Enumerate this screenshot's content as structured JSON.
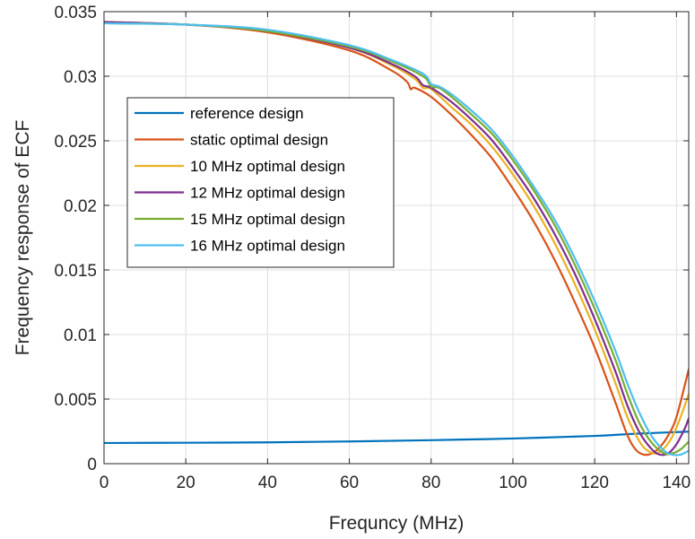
{
  "chart_data": {
    "type": "line",
    "title": "",
    "xlabel": "Frequncy (MHz)",
    "ylabel": "Frequency response of ECF",
    "xlim": [
      0,
      143
    ],
    "ylim": [
      0,
      0.035
    ],
    "x_ticks": [
      0,
      20,
      40,
      60,
      80,
      100,
      120,
      140
    ],
    "x_tick_labels": [
      "0",
      "20",
      "40",
      "60",
      "80",
      "100",
      "120",
      "140"
    ],
    "y_ticks": [
      0,
      0.005,
      0.01,
      0.015,
      0.02,
      0.025,
      0.03,
      0.035
    ],
    "y_tick_labels": [
      "0",
      "0.005",
      "0.01",
      "0.015",
      "0.02",
      "0.025",
      "0.03",
      "0.035"
    ],
    "grid": true,
    "legend_position": "upper-left",
    "series": [
      {
        "name": "reference design",
        "color": "#0072BD",
        "points": [
          [
            0,
            0.0016
          ],
          [
            20,
            0.00162
          ],
          [
            40,
            0.00165
          ],
          [
            60,
            0.00172
          ],
          [
            80,
            0.00182
          ],
          [
            100,
            0.00195
          ],
          [
            120,
            0.00215
          ],
          [
            130,
            0.00232
          ],
          [
            143,
            0.00248
          ]
        ]
      },
      {
        "name": "static optimal design",
        "color": "#D95319",
        "points": [
          [
            0,
            0.0342
          ],
          [
            20,
            0.034
          ],
          [
            40,
            0.0334
          ],
          [
            60,
            0.032
          ],
          [
            70,
            0.0305
          ],
          [
            74,
            0.0296
          ],
          [
            75,
            0.029
          ],
          [
            76,
            0.0291
          ],
          [
            80,
            0.0284
          ],
          [
            85,
            0.027
          ],
          [
            90,
            0.0254
          ],
          [
            95,
            0.0236
          ],
          [
            100,
            0.0213
          ],
          [
            105,
            0.0188
          ],
          [
            110,
            0.0159
          ],
          [
            115,
            0.0126
          ],
          [
            120,
            0.009
          ],
          [
            125,
            0.0048
          ],
          [
            128,
            0.0022
          ],
          [
            130,
            0.0011
          ],
          [
            132,
            0.0007
          ],
          [
            134,
            0.0008
          ],
          [
            136,
            0.0013
          ],
          [
            138,
            0.0022
          ],
          [
            140,
            0.0036
          ],
          [
            143,
            0.0073
          ]
        ]
      },
      {
        "name": "10 MHz optimal design",
        "color": "#EDB120",
        "points": [
          [
            0,
            0.0342
          ],
          [
            20,
            0.034
          ],
          [
            40,
            0.0335
          ],
          [
            60,
            0.0322
          ],
          [
            70,
            0.0309
          ],
          [
            76,
            0.0298
          ],
          [
            78,
            0.0291
          ],
          [
            80,
            0.029
          ],
          [
            85,
            0.0276
          ],
          [
            90,
            0.0262
          ],
          [
            95,
            0.0245
          ],
          [
            100,
            0.0224
          ],
          [
            105,
            0.02
          ],
          [
            110,
            0.0172
          ],
          [
            115,
            0.014
          ],
          [
            120,
            0.0104
          ],
          [
            125,
            0.0063
          ],
          [
            128,
            0.0036
          ],
          [
            131,
            0.0017
          ],
          [
            133,
            0.001
          ],
          [
            135,
            0.0008
          ],
          [
            137,
            0.0012
          ],
          [
            139,
            0.0021
          ],
          [
            141,
            0.0036
          ],
          [
            143,
            0.0054
          ]
        ]
      },
      {
        "name": "12 MHz optimal design",
        "color": "#7E2F8E",
        "points": [
          [
            0,
            0.0342
          ],
          [
            20,
            0.034
          ],
          [
            40,
            0.0335
          ],
          [
            60,
            0.0322
          ],
          [
            70,
            0.031
          ],
          [
            76,
            0.03
          ],
          [
            78,
            0.0293
          ],
          [
            80,
            0.0291
          ],
          [
            85,
            0.028
          ],
          [
            90,
            0.0266
          ],
          [
            95,
            0.025
          ],
          [
            100,
            0.0229
          ],
          [
            105,
            0.0206
          ],
          [
            110,
            0.0179
          ],
          [
            115,
            0.0148
          ],
          [
            120,
            0.0112
          ],
          [
            125,
            0.0072
          ],
          [
            128,
            0.0045
          ],
          [
            131,
            0.0024
          ],
          [
            134,
            0.0011
          ],
          [
            136,
            0.0007
          ],
          [
            138,
            0.0008
          ],
          [
            140,
            0.0015
          ],
          [
            142,
            0.0027
          ],
          [
            143,
            0.0035
          ]
        ]
      },
      {
        "name": "15 MHz optimal design",
        "color": "#77AC30",
        "points": [
          [
            0,
            0.0341
          ],
          [
            20,
            0.034
          ],
          [
            40,
            0.0335
          ],
          [
            60,
            0.0323
          ],
          [
            70,
            0.0312
          ],
          [
            78,
            0.03
          ],
          [
            80,
            0.0292
          ],
          [
            82,
            0.0291
          ],
          [
            85,
            0.0284
          ],
          [
            90,
            0.027
          ],
          [
            95,
            0.0255
          ],
          [
            100,
            0.0235
          ],
          [
            105,
            0.0212
          ],
          [
            110,
            0.0186
          ],
          [
            115,
            0.0155
          ],
          [
            120,
            0.012
          ],
          [
            125,
            0.0081
          ],
          [
            128,
            0.0054
          ],
          [
            131,
            0.0031
          ],
          [
            134,
            0.0016
          ],
          [
            137,
            0.0008
          ],
          [
            139,
            0.0008
          ],
          [
            141,
            0.0011
          ],
          [
            143,
            0.0017
          ]
        ]
      },
      {
        "name": "16 MHz optimal design",
        "color": "#4DBEEE",
        "points": [
          [
            0,
            0.0341
          ],
          [
            20,
            0.034
          ],
          [
            40,
            0.0336
          ],
          [
            60,
            0.0324
          ],
          [
            70,
            0.0313
          ],
          [
            78,
            0.0302
          ],
          [
            80,
            0.0294
          ],
          [
            82,
            0.0292
          ],
          [
            85,
            0.0286
          ],
          [
            90,
            0.0273
          ],
          [
            95,
            0.0258
          ],
          [
            100,
            0.0238
          ],
          [
            105,
            0.0215
          ],
          [
            110,
            0.019
          ],
          [
            115,
            0.016
          ],
          [
            120,
            0.0126
          ],
          [
            125,
            0.0088
          ],
          [
            128,
            0.0062
          ],
          [
            131,
            0.0039
          ],
          [
            134,
            0.0021
          ],
          [
            137,
            0.001
          ],
          [
            139,
            0.0007
          ],
          [
            141,
            0.0007
          ],
          [
            143,
            0.001
          ]
        ]
      }
    ]
  }
}
